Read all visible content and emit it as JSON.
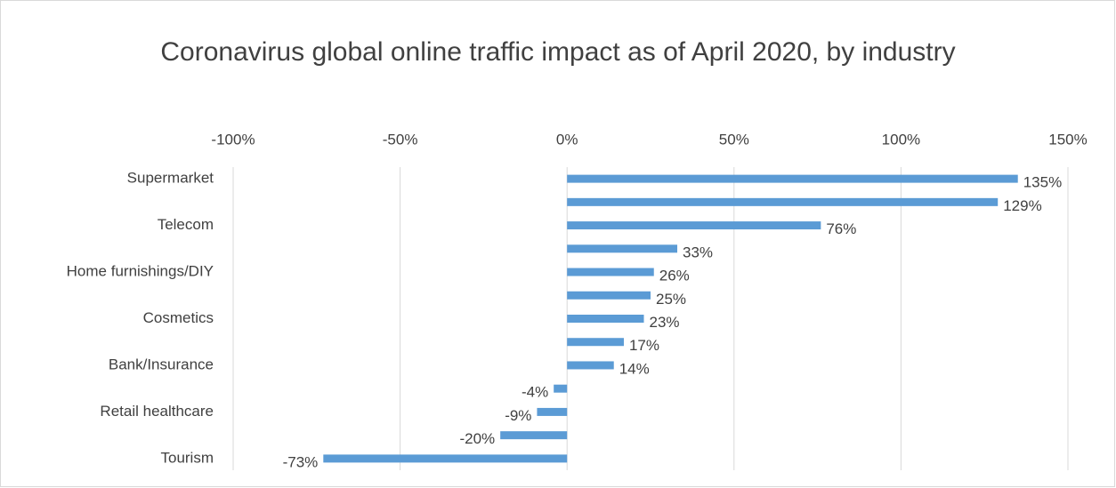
{
  "chart_data": {
    "type": "bar",
    "orientation": "horizontal",
    "title": "Coronavirus global online traffic impact as of April 2020, by industry",
    "categories": [
      "Supermarket",
      null,
      "Telecom",
      null,
      "Home furnishings/DIY",
      null,
      "Cosmetics",
      null,
      "Bank/Insurance",
      null,
      "Retail healthcare",
      null,
      "Tourism"
    ],
    "values": [
      135,
      129,
      76,
      33,
      26,
      25,
      23,
      17,
      14,
      -4,
      -9,
      -20,
      -73
    ],
    "value_labels": [
      "135%",
      "129%",
      "76%",
      "33%",
      "26%",
      "25%",
      "23%",
      "17%",
      "14%",
      "-4%",
      "-9%",
      "-20%",
      "-73%"
    ],
    "color": "#5b9bd5",
    "xlim": [
      -100,
      150
    ],
    "xticks": [
      {
        "value": -100,
        "label": "-100%"
      },
      {
        "value": -50,
        "label": "-50%"
      },
      {
        "value": 0,
        "label": "0%"
      },
      {
        "value": 50,
        "label": "50%"
      },
      {
        "value": 100,
        "label": "100%"
      },
      {
        "value": 150,
        "label": "150%"
      }
    ],
    "grid": true
  }
}
